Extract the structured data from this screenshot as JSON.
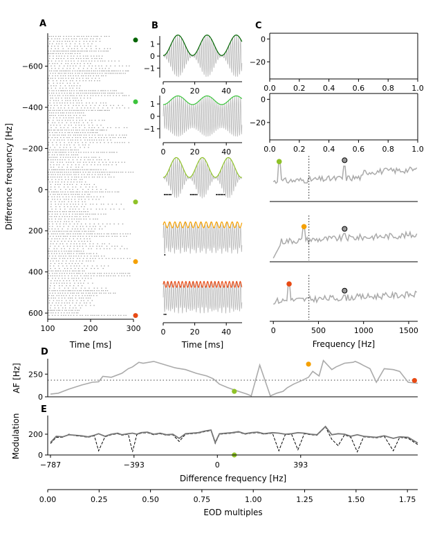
{
  "chart_data": [
    {
      "panel": "A",
      "type": "raster",
      "panel_label": "A",
      "xlabel": "Time [ms]",
      "ylabel": "Difference frequency [Hz]",
      "xlim": [
        100,
        300
      ],
      "ylim": [
        630,
        -760
      ],
      "xticks": [
        100,
        200,
        300
      ],
      "yticks": [
        -600,
        -400,
        -200,
        0,
        200,
        400,
        600
      ],
      "ytick_labels": [
        "−600",
        "−400",
        "−200",
        "0",
        "200",
        "400",
        "600"
      ],
      "rows_from": -745,
      "rows_to": 615,
      "row_step": 12,
      "markers": [
        {
          "y": -727,
          "color": "#006400"
        },
        {
          "y": -427,
          "color": "#3cc43c"
        },
        {
          "y": 60,
          "color": "#8fc228"
        },
        {
          "y": 350,
          "color": "#f5a000"
        },
        {
          "y": 612,
          "color": "#e84a14"
        }
      ]
    },
    {
      "panel": "B",
      "type": "line",
      "panel_label": "B",
      "xlabel": "Time [ms]",
      "xticks": [
        0,
        20,
        40
      ],
      "yticks": [
        -1,
        0,
        1
      ],
      "xlim": [
        0,
        50
      ],
      "ylim": [
        -1.9,
        1.9
      ],
      "series": [
        {
          "color": "#006400",
          "beat_period_ms": 18.5,
          "carrier_period_ms": 1.25,
          "signal": "beat",
          "spikes_ms": []
        },
        {
          "color": "#3cc43c",
          "beat_period_ms": 18.5,
          "carrier_period_ms": 1.25,
          "signal": "weak",
          "spikes_ms": []
        },
        {
          "color": "#8fc228",
          "beat_period_ms": 16.5,
          "carrier_period_ms": 1.25,
          "signal": "beat",
          "spikes_ms": [
            0.5,
            1.5,
            2.5,
            3.5,
            4.5,
            17.0,
            18.0,
            19.0,
            20.0,
            21.0,
            33.5,
            34.5,
            35.5,
            36.5,
            37.5,
            38.5
          ]
        },
        {
          "color": "#f5a000",
          "beat_period_ms": 3.3,
          "carrier_period_ms": 1.25,
          "signal": "fast",
          "spikes_ms": [
            0.7
          ]
        },
        {
          "color": "#e84a14",
          "beat_period_ms": 2.3,
          "carrier_period_ms": 1.25,
          "signal": "fast",
          "spikes_ms": [
            0.3,
            1.3
          ]
        }
      ]
    },
    {
      "panel": "C",
      "type": "line",
      "panel_label": "C",
      "xlabel": "Frequency [Hz]",
      "xlim": [
        -40,
        1600
      ],
      "xticks": [
        0,
        500,
        1000,
        1500
      ],
      "empty_axes": {
        "xlim": [
          0,
          1
        ],
        "xticks": [
          "0.0",
          "0.2",
          "0.4",
          "0.6",
          "0.8",
          "1.0"
        ],
        "ylim": [
          -35,
          5
        ],
        "yticks": [
          "0",
          "−20"
        ]
      },
      "eod_line_hz": 395,
      "series": [
        {
          "peak_hz": 65,
          "peak_color": "#8fc228",
          "eod_peak_hz": 790,
          "peak_rel": 0.87,
          "eod_rel": 0.9
        },
        {
          "peak_hz": 340,
          "peak_color": "#f5a000",
          "eod_peak_hz": 790,
          "peak_rel": 0.75,
          "eod_rel": 0.7
        },
        {
          "peak_hz": 175,
          "peak_color": "#e84a14",
          "eod_peak_hz": 790,
          "peak_rel": 0.8,
          "eod_rel": 0.65
        }
      ]
    },
    {
      "panel": "D",
      "type": "line",
      "panel_label": "D",
      "ylabel": "AF [Hz]",
      "xlim": [
        -800,
        945
      ],
      "ylim": [
        0,
        420
      ],
      "yticks": [
        0,
        250
      ],
      "hline": 183,
      "x": [
        -787,
        -750,
        -700,
        -640,
        -590,
        -560,
        -540,
        -500,
        -450,
        -420,
        -400,
        -370,
        -350,
        -300,
        -250,
        -200,
        -150,
        -100,
        -50,
        -20,
        -10,
        10,
        50,
        100,
        140,
        160,
        200,
        250,
        280,
        310,
        330,
        360,
        390,
        430,
        450,
        480,
        500,
        540,
        560,
        600,
        640,
        650,
        670,
        690,
        720,
        750,
        787,
        830,
        860,
        900,
        945
      ],
      "y": [
        30,
        40,
        85,
        130,
        160,
        165,
        225,
        215,
        260,
        310,
        330,
        380,
        370,
        390,
        355,
        320,
        300,
        260,
        230,
        200,
        180,
        140,
        100,
        60,
        30,
        10,
        350,
        10,
        40,
        60,
        100,
        140,
        170,
        215,
        280,
        230,
        400,
        300,
        330,
        370,
        380,
        390,
        370,
        345,
        310,
        160,
        310,
        300,
        280,
        160,
        150
      ],
      "markers": [
        {
          "x": 80,
          "y": 60,
          "color": "#8fc228"
        },
        {
          "x": 430,
          "y": 360,
          "color": "#f5a000"
        },
        {
          "x": 930,
          "y": 180,
          "color": "#e84a14"
        }
      ]
    },
    {
      "panel": "E",
      "type": "line",
      "panel_label": "E",
      "ylabel": "Modulation",
      "xlabel": "Difference frequency [Hz]",
      "xlim": [
        -800,
        945
      ],
      "ylim": [
        0,
        380
      ],
      "xticks": [
        -787,
        -393,
        0,
        393
      ],
      "xtick_labels": [
        "−787",
        "−393",
        "0",
        "393"
      ],
      "yticks": [
        0,
        200
      ],
      "x": [
        -787,
        -760,
        -730,
        -700,
        -670,
        -640,
        -610,
        -580,
        -560,
        -530,
        -500,
        -470,
        -450,
        -420,
        -400,
        -380,
        -360,
        -330,
        -300,
        -270,
        -240,
        -210,
        -180,
        -150,
        -120,
        -90,
        -60,
        -30,
        -10,
        10,
        40,
        70,
        100,
        130,
        160,
        190,
        220,
        260,
        290,
        320,
        350,
        380,
        410,
        440,
        470,
        510,
        540,
        570,
        600,
        630,
        660,
        690,
        720,
        750,
        787,
        830,
        860,
        900,
        945
      ],
      "y": [
        120,
        180,
        175,
        195,
        190,
        185,
        175,
        190,
        205,
        180,
        200,
        210,
        195,
        205,
        210,
        200,
        215,
        220,
        200,
        210,
        195,
        200,
        160,
        205,
        210,
        215,
        230,
        240,
        120,
        205,
        210,
        215,
        225,
        205,
        215,
        220,
        205,
        215,
        210,
        200,
        205,
        215,
        210,
        200,
        195,
        275,
        195,
        205,
        200,
        180,
        195,
        180,
        175,
        170,
        185,
        160,
        175,
        170,
        115
      ],
      "y_dashed": [
        110,
        170,
        170,
        200,
        185,
        180,
        170,
        185,
        40,
        175,
        195,
        205,
        190,
        200,
        30,
        195,
        210,
        215,
        195,
        205,
        190,
        195,
        130,
        200,
        205,
        210,
        225,
        235,
        110,
        200,
        205,
        210,
        220,
        200,
        210,
        215,
        200,
        210,
        40,
        195,
        200,
        50,
        205,
        195,
        190,
        270,
        150,
        90,
        195,
        170,
        30,
        175,
        170,
        165,
        180,
        40,
        170,
        160,
        100
      ],
      "markers": [
        {
          "x": 80,
          "y": 0,
          "color": "#8fc228"
        }
      ]
    },
    {
      "panel": "EOD",
      "type": "axis",
      "xlabel": "EOD multiples",
      "xlim": [
        0,
        1.8
      ],
      "xticks": [
        0,
        0.25,
        0.5,
        0.75,
        1.0,
        1.25,
        1.5,
        1.75
      ],
      "xtick_labels": [
        "0.00",
        "0.25",
        "0.50",
        "0.75",
        "1.00",
        "1.25",
        "1.50",
        "1.75"
      ]
    }
  ]
}
